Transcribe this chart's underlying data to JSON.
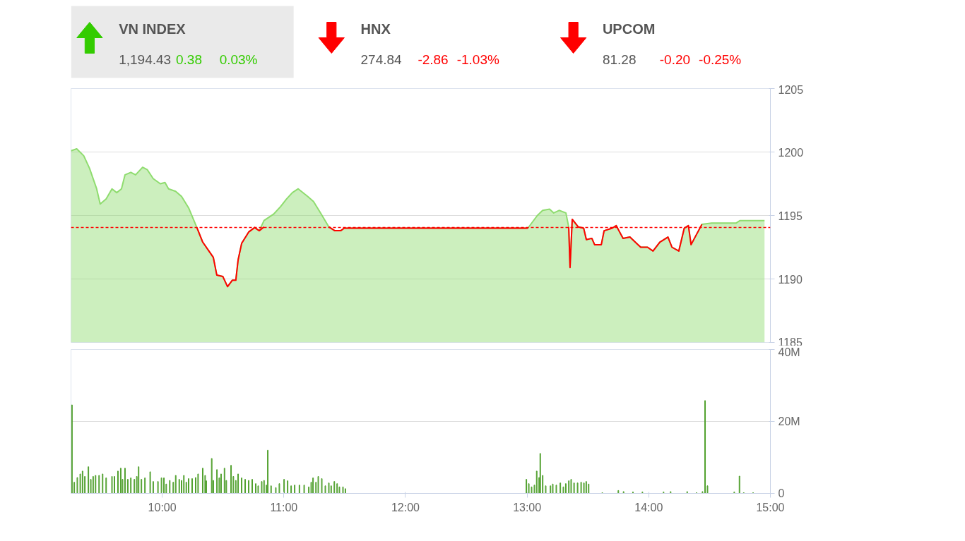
{
  "chart_data": [
    {
      "type": "other",
      "categories": [
        "VN INDEX",
        "HNX",
        "UPCOM"
      ],
      "colors": [
        "#33cc00",
        "#ff0000",
        "#ff0000"
      ],
      "series": [
        {
          "values": [
            1194.43,
            274.84,
            81.28
          ],
          "value_labels": [
            "1,194.43",
            "274.84",
            "81.28"
          ]
        },
        {
          "values": [
            0.38,
            -2.86,
            -0.2
          ],
          "value_labels": [
            "0.38",
            "-2.86",
            "-0.20"
          ]
        },
        {
          "values": [
            0.03,
            -1.03,
            -0.25
          ],
          "value_labels": [
            "0.03%",
            "-1.03%",
            "-0.25%"
          ]
        }
      ]
    },
    {
      "type": "area",
      "xlim": [
        9.25,
        15.0
      ],
      "ylim": [
        1185,
        1205
      ],
      "yticks": [
        1185,
        1190,
        1195,
        1200,
        1205
      ],
      "grid": "y",
      "tick_labels": "y",
      "ref_lines": [
        {
          "axis": "y",
          "value": 1194.05,
          "color": "#ff0000",
          "line_style": "dashed"
        }
      ],
      "series": [
        {
          "type": "area",
          "color": "#8fdc6f",
          "x": [
            9.25,
            9.297,
            9.355,
            9.403,
            9.461,
            9.49,
            9.539,
            9.587,
            9.626,
            9.665,
            9.694,
            9.742,
            9.781,
            9.839,
            9.878,
            9.926,
            9.984,
            10.023,
            10.052,
            10.11,
            10.159,
            10.217,
            10.285,
            10.333,
            10.42,
            10.449,
            10.498,
            10.537,
            10.576,
            10.605,
            10.624,
            10.653,
            10.711,
            10.76,
            10.798,
            10.837,
            10.915,
            10.973,
            11.022,
            11.07,
            11.118,
            11.196,
            11.244,
            11.302,
            11.37,
            11.419,
            11.467,
            11.496,
            13.006,
            13.084,
            13.128,
            13.185,
            13.219,
            13.263,
            13.319,
            13.342,
            13.353,
            13.371,
            13.42,
            13.465,
            13.487,
            13.532,
            13.555,
            13.61,
            13.633,
            13.699,
            13.733,
            13.755,
            13.789,
            13.845,
            13.912,
            13.934,
            13.99,
            14.035,
            14.091,
            14.158,
            14.191,
            14.247,
            14.292,
            14.326,
            14.348,
            14.381,
            14.437,
            14.516,
            14.717,
            14.751,
            14.952
          ],
          "values": [
            1200.1,
            1200.25,
            1199.7,
            1198.7,
            1197.1,
            1195.9,
            1196.3,
            1197.1,
            1196.8,
            1197.1,
            1198.2,
            1198.4,
            1198.2,
            1198.8,
            1198.6,
            1197.9,
            1197.5,
            1197.6,
            1197.1,
            1196.9,
            1196.5,
            1195.6,
            1194.05,
            1192.9,
            1191.7,
            1190.3,
            1190.2,
            1189.4,
            1189.9,
            1189.9,
            1191.5,
            1192.8,
            1193.7,
            1194.05,
            1193.8,
            1194.6,
            1195.1,
            1195.7,
            1196.3,
            1196.8,
            1197.1,
            1196.5,
            1196.1,
            1195.2,
            1194.1,
            1193.8,
            1193.8,
            1194.0,
            1194.0,
            1195.0,
            1195.4,
            1195.5,
            1195.2,
            1195.4,
            1195.2,
            1194.1,
            1190.9,
            1194.7,
            1194.1,
            1194.0,
            1193.1,
            1193.2,
            1192.7,
            1192.7,
            1193.8,
            1194.0,
            1194.2,
            1193.8,
            1193.2,
            1193.3,
            1192.7,
            1192.5,
            1192.5,
            1192.2,
            1192.9,
            1193.3,
            1192.5,
            1192.2,
            1194.0,
            1194.2,
            1192.7,
            1193.3,
            1194.3,
            1194.4,
            1194.4,
            1194.6,
            1194.6
          ]
        },
        {
          "type": "line",
          "color": "#ff0000",
          "x": [
            10.285,
            10.333,
            10.42,
            10.449,
            10.498,
            10.537,
            10.576,
            10.605,
            10.624,
            10.653,
            10.711,
            10.76,
            10.798,
            10.837,
            10.9,
            11.37,
            11.419,
            11.467,
            11.496,
            13.006,
            13.1,
            13.342,
            13.353,
            13.371,
            13.42,
            13.465,
            13.487,
            13.532,
            13.555,
            13.61,
            13.633,
            13.699,
            13.733,
            13.755,
            13.789,
            13.845,
            13.912,
            13.934,
            13.99,
            14.035,
            14.091,
            14.158,
            14.191,
            14.247,
            14.292,
            14.326,
            14.348,
            14.381,
            14.437
          ],
          "values": [
            1194.05,
            1192.9,
            1191.7,
            1190.3,
            1190.2,
            1189.4,
            1189.9,
            1189.9,
            1191.5,
            1192.8,
            1193.7,
            1194.05,
            1193.8,
            1194.1,
            null,
            1194.1,
            1193.8,
            1193.8,
            1194.0,
            1194.0,
            null,
            1194.1,
            1190.9,
            1194.7,
            1194.1,
            1194.0,
            1193.1,
            1193.2,
            1192.7,
            1192.7,
            1193.8,
            1194.0,
            1194.2,
            1193.8,
            1193.2,
            1193.3,
            1192.7,
            1192.5,
            1192.5,
            1192.2,
            1192.9,
            1193.3,
            1192.5,
            1192.2,
            1194.0,
            1194.2,
            1192.7,
            1193.3,
            1194.3
          ]
        }
      ]
    },
    {
      "type": "bar",
      "xlim": [
        9.25,
        15.0
      ],
      "ylim": [
        0,
        40
      ],
      "yticks": [
        {
          "value": 0,
          "label": "0"
        },
        {
          "value": 20,
          "label": "20M"
        },
        {
          "value": 40,
          "label": "40M"
        }
      ],
      "grid": "y",
      "xticks": [
        {
          "value": 10,
          "label": "10:00"
        },
        {
          "value": 11,
          "label": "11:00"
        },
        {
          "value": 12,
          "label": "12:00"
        },
        {
          "value": 13,
          "label": "13:00"
        },
        {
          "value": 14,
          "label": "14:00"
        },
        {
          "value": 15,
          "label": "15:00"
        }
      ],
      "series": [
        {
          "color": "#4f9f2c",
          "x": [
            9.258,
            9.277,
            9.302,
            9.326,
            9.345,
            9.364,
            9.393,
            9.413,
            9.432,
            9.452,
            9.481,
            9.51,
            9.539,
            9.587,
            9.607,
            9.636,
            9.659,
            9.674,
            9.694,
            9.717,
            9.742,
            9.771,
            9.791,
            9.806,
            9.829,
            9.858,
            9.901,
            9.926,
            9.965,
            9.994,
            10.014,
            10.033,
            10.062,
            10.091,
            10.111,
            10.14,
            10.159,
            10.178,
            10.198,
            10.217,
            10.246,
            10.275,
            10.295,
            10.333,
            10.353,
            10.362,
            10.407,
            10.42,
            10.45,
            10.469,
            10.484,
            10.512,
            10.527,
            10.566,
            10.585,
            10.605,
            10.624,
            10.653,
            10.682,
            10.711,
            10.74,
            10.769,
            10.789,
            10.818,
            10.837,
            10.857,
            10.868,
            10.895,
            10.934,
            10.963,
            11.002,
            11.031,
            11.06,
            11.089,
            11.128,
            11.167,
            11.205,
            11.225,
            11.24,
            11.264,
            11.283,
            11.312,
            11.341,
            11.37,
            11.389,
            11.415,
            11.438,
            11.457,
            11.486,
            11.506,
            12.994,
            13.014,
            13.037,
            13.06,
            13.079,
            13.099,
            13.108,
            13.128,
            13.153,
            13.192,
            13.211,
            13.24,
            13.273,
            13.298,
            13.318,
            13.343,
            13.362,
            13.386,
            13.415,
            13.444,
            13.467,
            13.486,
            13.506,
            13.618,
            13.75,
            13.793,
            13.87,
            13.948,
            14.122,
            14.18,
            14.316,
            14.393,
            14.442,
            14.463,
            14.483,
            14.703,
            14.746,
            14.781,
            14.858
          ],
          "values": [
            24.6,
            3.1,
            4.4,
            5.4,
            6.2,
            4.7,
            7.4,
            3.9,
            4.7,
            5.0,
            5.0,
            5.4,
            4.3,
            4.7,
            4.7,
            6.2,
            7.0,
            3.9,
            7.0,
            3.9,
            4.3,
            3.9,
            4.7,
            7.4,
            3.9,
            4.3,
            6.0,
            3.3,
            3.3,
            4.3,
            4.3,
            2.6,
            3.6,
            3.1,
            5.0,
            3.9,
            3.6,
            5.0,
            3.1,
            4.1,
            4.1,
            4.4,
            5.4,
            7.0,
            5.0,
            3.5,
            9.7,
            3.6,
            6.6,
            4.3,
            5.4,
            7.0,
            3.6,
            7.8,
            4.7,
            3.6,
            5.4,
            4.3,
            3.9,
            3.6,
            3.9,
            2.7,
            2.1,
            3.3,
            3.6,
            2.3,
            12.0,
            2.1,
            1.6,
            2.7,
            3.9,
            3.5,
            2.1,
            2.3,
            2.3,
            2.3,
            1.8,
            3.1,
            4.3,
            3.1,
            4.7,
            4.1,
            2.1,
            2.9,
            2.1,
            3.3,
            2.7,
            1.8,
            1.8,
            1.3,
            3.9,
            2.7,
            1.8,
            2.3,
            6.2,
            4.4,
            11.1,
            5.0,
            2.1,
            2.1,
            2.6,
            2.3,
            2.9,
            1.8,
            2.7,
            3.5,
            3.9,
            2.9,
            2.9,
            3.1,
            2.9,
            3.3,
            2.6,
            0.2,
            0.8,
            0.5,
            0.4,
            0.4,
            0.4,
            0.5,
            0.5,
            0.2,
            0.5,
            25.8,
            2.1,
            0.4,
            4.8,
            0.2,
            0.2
          ]
        }
      ]
    }
  ]
}
